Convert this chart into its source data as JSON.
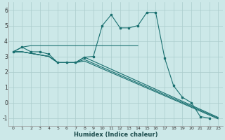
{
  "xlabel": "Humidex (Indice chaleur)",
  "bg_color": "#cce8e8",
  "grid_color": "#aacccc",
  "line_color": "#1a7070",
  "xlim": [
    -0.5,
    23.5
  ],
  "ylim": [
    -1.5,
    6.5
  ],
  "yticks": [
    -1,
    0,
    1,
    2,
    3,
    4,
    5,
    6
  ],
  "xticks": [
    0,
    1,
    2,
    3,
    4,
    5,
    6,
    7,
    8,
    9,
    10,
    11,
    12,
    13,
    14,
    15,
    16,
    17,
    18,
    19,
    20,
    21,
    22,
    23
  ],
  "main_x": [
    0,
    1,
    2,
    3,
    4,
    5,
    6,
    7,
    8,
    9,
    10,
    11,
    12,
    13,
    14,
    15,
    16,
    17,
    18,
    19,
    20,
    21,
    22,
    23
  ],
  "main_y": [
    3.3,
    3.6,
    3.3,
    3.3,
    3.15,
    2.6,
    2.6,
    2.6,
    2.95,
    3.0,
    5.0,
    5.7,
    4.85,
    4.85,
    5.0,
    5.85,
    5.85,
    2.9,
    1.1,
    0.35,
    0.0,
    -0.9,
    -1.0,
    null
  ],
  "flat_x": [
    0,
    1,
    2,
    3,
    4,
    5,
    6,
    7,
    8,
    9,
    10,
    11,
    12,
    13,
    14
  ],
  "flat_y": [
    3.3,
    3.6,
    3.7,
    3.7,
    3.7,
    3.7,
    3.7,
    3.7,
    3.7,
    3.7,
    3.7,
    3.7,
    3.7,
    3.7,
    3.7
  ],
  "fan_lines": [
    {
      "x": [
        0,
        1,
        2,
        3,
        4,
        5,
        6,
        7,
        8,
        23
      ],
      "y": [
        3.3,
        3.3,
        3.2,
        3.1,
        3.0,
        2.6,
        2.6,
        2.6,
        2.95,
        -0.95
      ]
    },
    {
      "x": [
        0,
        1,
        2,
        3,
        4,
        5,
        6,
        7,
        8,
        23
      ],
      "y": [
        3.3,
        3.3,
        3.2,
        3.1,
        3.0,
        2.6,
        2.6,
        2.6,
        2.8,
        -1.0
      ]
    },
    {
      "x": [
        0,
        1,
        2,
        3,
        4,
        5,
        6,
        7,
        8,
        23
      ],
      "y": [
        3.3,
        3.3,
        3.2,
        3.1,
        3.0,
        2.6,
        2.6,
        2.6,
        2.7,
        -1.05
      ]
    }
  ]
}
